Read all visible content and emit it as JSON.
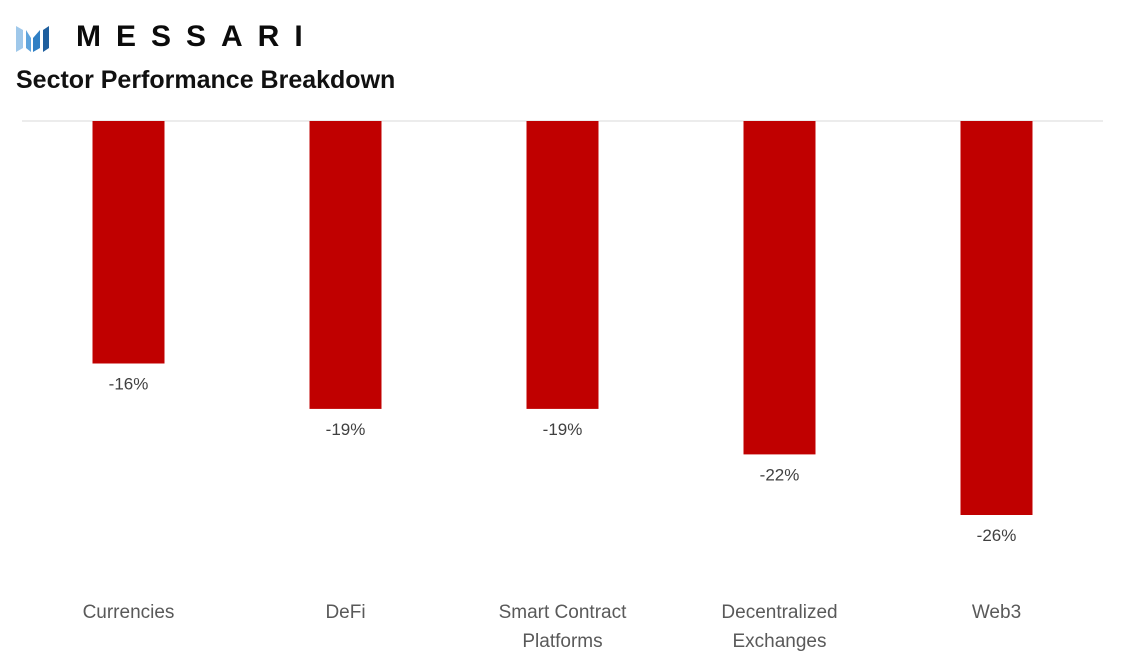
{
  "brand": {
    "name": "MESSARI",
    "icon": "messari-logo-icon"
  },
  "chart_data": {
    "type": "bar",
    "title": "Sector Performance Breakdown",
    "categories": [
      [
        "Currencies"
      ],
      [
        "DeFi"
      ],
      [
        "Smart Contract",
        "Platforms"
      ],
      [
        "Decentralized",
        "Exchanges"
      ],
      [
        "Web3"
      ]
    ],
    "values": [
      -16,
      -19,
      -19,
      -22,
      -26
    ],
    "data_labels": [
      "-16%",
      "-19%",
      "-19%",
      "-22%",
      "-26%"
    ],
    "ylim": [
      -26,
      0
    ],
    "unit": "%",
    "bar_color": "#c00000",
    "grid": false,
    "legend": "none"
  }
}
